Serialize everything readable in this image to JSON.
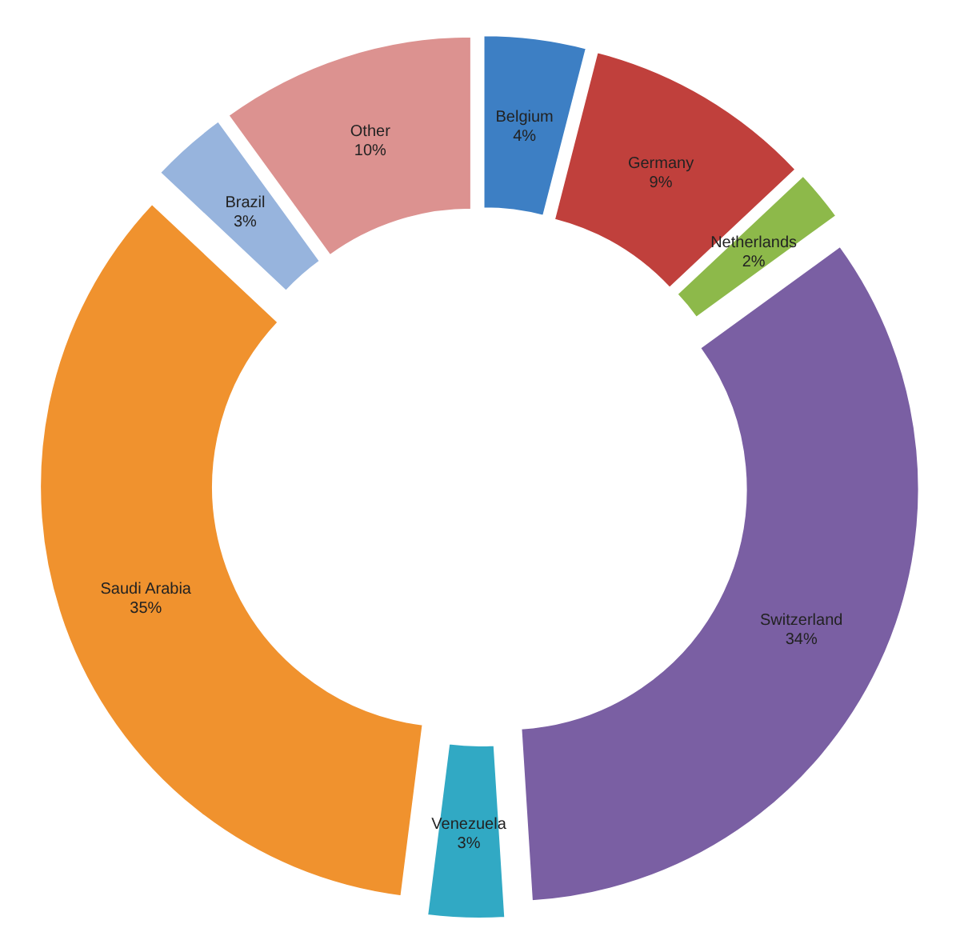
{
  "chart_data": {
    "type": "donut",
    "categories": [
      "Belgium",
      "Germany",
      "Netherlands",
      "Switzerland",
      "Venezuela",
      "Saudi Arabia",
      "Brazil",
      "Other"
    ],
    "values": [
      4,
      9,
      2,
      34,
      3,
      35,
      3,
      10
    ],
    "value_labels": [
      "4%",
      "9%",
      "2%",
      "34%",
      "3%",
      "35%",
      "3%",
      "10%"
    ],
    "colors": [
      "#3d7fc4",
      "#c0403c",
      "#8db94a",
      "#7a5fa3",
      "#31a9c4",
      "#f0922e",
      "#97b4dd",
      "#dc9290"
    ]
  }
}
